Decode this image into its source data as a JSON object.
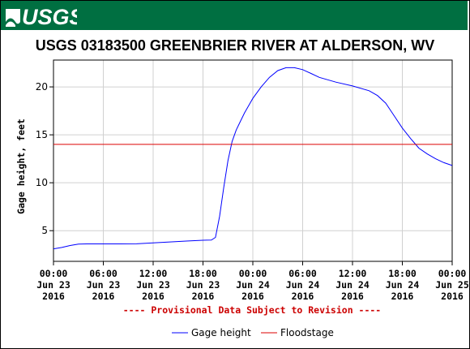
{
  "header": {
    "logo_text": "USGS",
    "brand_color": "#006f41"
  },
  "chart_data": {
    "type": "line",
    "title": "USGS 03183500 GREENBRIER RIVER AT ALDERSON, WV",
    "ylabel": "Gage height, feet",
    "xlabel": "",
    "ylim": [
      1.8,
      22.8
    ],
    "yticks": [
      5,
      10,
      15,
      20
    ],
    "xlim": [
      "2016-06-23 00:00",
      "2016-06-25 00:00"
    ],
    "xticks": [
      {
        "time": "2016-06-23 00:00",
        "line1": "00:00",
        "line2": "Jun 23",
        "line3": "2016"
      },
      {
        "time": "2016-06-23 06:00",
        "line1": "06:00",
        "line2": "Jun 23",
        "line3": "2016"
      },
      {
        "time": "2016-06-23 12:00",
        "line1": "12:00",
        "line2": "Jun 23",
        "line3": "2016"
      },
      {
        "time": "2016-06-23 18:00",
        "line1": "18:00",
        "line2": "Jun 23",
        "line3": "2016"
      },
      {
        "time": "2016-06-24 00:00",
        "line1": "00:00",
        "line2": "Jun 24",
        "line3": "2016"
      },
      {
        "time": "2016-06-24 06:00",
        "line1": "06:00",
        "line2": "Jun 24",
        "line3": "2016"
      },
      {
        "time": "2016-06-24 12:00",
        "line1": "12:00",
        "line2": "Jun 24",
        "line3": "2016"
      },
      {
        "time": "2016-06-24 18:00",
        "line1": "18:00",
        "line2": "Jun 24",
        "line3": "2016"
      },
      {
        "time": "2016-06-25 00:00",
        "line1": "00:00",
        "line2": "Jun 25",
        "line3": "2016"
      }
    ],
    "grid": true,
    "notice": "---- Provisional Data Subject to Revision ----",
    "notice_color": "#cc0000",
    "series": [
      {
        "name": "Gage height",
        "color": "#0000ff",
        "points": [
          [
            "2016-06-23 00:00",
            3.1
          ],
          [
            "2016-06-23 01:00",
            3.25
          ],
          [
            "2016-06-23 02:00",
            3.45
          ],
          [
            "2016-06-23 03:00",
            3.6
          ],
          [
            "2016-06-23 04:00",
            3.62
          ],
          [
            "2016-06-23 08:00",
            3.62
          ],
          [
            "2016-06-23 10:00",
            3.63
          ],
          [
            "2016-06-23 12:00",
            3.72
          ],
          [
            "2016-06-23 14:00",
            3.82
          ],
          [
            "2016-06-23 16:00",
            3.92
          ],
          [
            "2016-06-23 18:00",
            4.0
          ],
          [
            "2016-06-23 19:00",
            4.02
          ],
          [
            "2016-06-23 19:30",
            4.3
          ],
          [
            "2016-06-23 20:00",
            6.5
          ],
          [
            "2016-06-23 20:30",
            9.5
          ],
          [
            "2016-06-23 21:00",
            12.3
          ],
          [
            "2016-06-23 21:30",
            14.3
          ],
          [
            "2016-06-23 22:00",
            15.5
          ],
          [
            "2016-06-23 22:30",
            16.4
          ],
          [
            "2016-06-23 23:00",
            17.3
          ],
          [
            "2016-06-24 00:00",
            18.8
          ],
          [
            "2016-06-24 01:00",
            20.0
          ],
          [
            "2016-06-24 02:00",
            21.0
          ],
          [
            "2016-06-24 03:00",
            21.7
          ],
          [
            "2016-06-24 04:00",
            22.0
          ],
          [
            "2016-06-24 05:00",
            22.0
          ],
          [
            "2016-06-24 06:00",
            21.8
          ],
          [
            "2016-06-24 07:00",
            21.4
          ],
          [
            "2016-06-24 08:00",
            21.0
          ],
          [
            "2016-06-24 10:00",
            20.5
          ],
          [
            "2016-06-24 12:00",
            20.1
          ],
          [
            "2016-06-24 14:00",
            19.6
          ],
          [
            "2016-06-24 15:00",
            19.1
          ],
          [
            "2016-06-24 16:00",
            18.3
          ],
          [
            "2016-06-24 17:00",
            17.0
          ],
          [
            "2016-06-24 18:00",
            15.7
          ],
          [
            "2016-06-24 19:00",
            14.6
          ],
          [
            "2016-06-24 20:00",
            13.6
          ],
          [
            "2016-06-24 21:00",
            13.0
          ],
          [
            "2016-06-24 22:00",
            12.5
          ],
          [
            "2016-06-24 23:00",
            12.1
          ],
          [
            "2016-06-25 00:00",
            11.8
          ]
        ]
      },
      {
        "name": "Floodstage",
        "color": "#dd0000",
        "value": 14.0
      }
    ],
    "legend_position": "bottom-center"
  }
}
